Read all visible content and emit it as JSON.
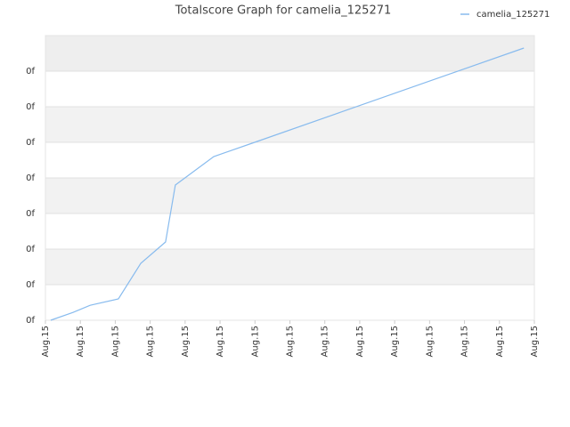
{
  "chart_data": {
    "type": "line",
    "title": "Totalscore Graph for camelia_125271",
    "x": [
      0.15,
      0.79,
      1.28,
      2.09,
      2.73,
      3.44,
      3.72,
      4.82,
      5.99,
      13.7
    ],
    "series": [
      {
        "name": "camelia_125271",
        "color": "#88bbee",
        "values": [
          0,
          0.22,
          0.42,
          0.6,
          1.6,
          2.2,
          3.8,
          4.6,
          5.0,
          7.65
        ]
      }
    ],
    "xlim": [
      0,
      14
    ],
    "xticks": [
      {
        "value": 0,
        "label": "Aug.15"
      },
      {
        "value": 1,
        "label": "Aug.15"
      },
      {
        "value": 2,
        "label": "Aug.15"
      },
      {
        "value": 3,
        "label": "Aug.15"
      },
      {
        "value": 4,
        "label": "Aug.15"
      },
      {
        "value": 5,
        "label": "Aug.15"
      },
      {
        "value": 6,
        "label": "Aug.15"
      },
      {
        "value": 7,
        "label": "Aug.15"
      },
      {
        "value": 8,
        "label": "Aug.15"
      },
      {
        "value": 9,
        "label": "Aug.15"
      },
      {
        "value": 10,
        "label": "Aug.15"
      },
      {
        "value": 11,
        "label": "Aug.15"
      },
      {
        "value": 12,
        "label": "Aug.15"
      },
      {
        "value": 13,
        "label": "Aug.15"
      },
      {
        "value": 14,
        "label": "Aug.15"
      }
    ],
    "ylim": [
      0,
      8
    ],
    "yticks": [
      {
        "value": 0,
        "label": "0f"
      },
      {
        "value": 1,
        "label": "0f"
      },
      {
        "value": 2,
        "label": "0f"
      },
      {
        "value": 3,
        "label": "0f"
      },
      {
        "value": 4,
        "label": "0f"
      },
      {
        "value": 5,
        "label": "0f"
      },
      {
        "value": 6,
        "label": "0f"
      },
      {
        "value": 7,
        "label": "0f"
      }
    ],
    "grid": true,
    "legend": "top-right"
  }
}
